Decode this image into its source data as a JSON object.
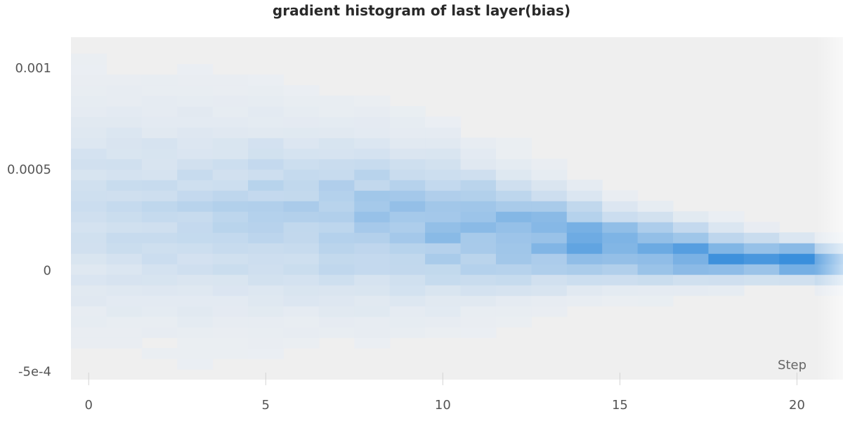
{
  "chart_data": {
    "type": "heatmap",
    "title": "gradient histogram of last layer(bias)",
    "xlabel": "Step",
    "ylabel": "",
    "xlim": [
      -0.5,
      21.3
    ],
    "ylim": [
      -0.000543,
      0.00115
    ],
    "x_ticks": [
      0,
      5,
      10,
      15,
      20
    ],
    "x_tick_labels": [
      "0",
      "5",
      "10",
      "15",
      "20"
    ],
    "y_ticks": [
      -0.0005,
      0,
      0.0005,
      0.001
    ],
    "y_tick_labels": [
      "-5e-4",
      "0",
      "0.0005",
      "0.001"
    ],
    "bin_height": 5.2e-05,
    "colors": {
      "low": "#eef0f3",
      "high": "#3a8fdc",
      "background": "#efefef"
    },
    "steps": [
      {
        "step": 0,
        "center": 0.0003,
        "spread": 0.00028
      },
      {
        "step": 1,
        "center": 0.00029,
        "spread": 0.00028
      },
      {
        "step": 2,
        "center": 0.00029,
        "spread": 0.00027
      },
      {
        "step": 3,
        "center": 0.00028,
        "spread": 0.00027
      },
      {
        "step": 4,
        "center": 0.00028,
        "spread": 0.00026
      },
      {
        "step": 5,
        "center": 0.00028,
        "spread": 0.00025
      },
      {
        "step": 6,
        "center": 0.00027,
        "spread": 0.00024
      },
      {
        "step": 7,
        "center": 0.00026,
        "spread": 0.00023
      },
      {
        "step": 8,
        "center": 0.00025,
        "spread": 0.00022
      },
      {
        "step": 9,
        "center": 0.00024,
        "spread": 0.00021
      },
      {
        "step": 10,
        "center": 0.00022,
        "spread": 0.00019
      },
      {
        "step": 11,
        "center": 0.0002,
        "spread": 0.00017
      },
      {
        "step": 12,
        "center": 0.00018,
        "spread": 0.00015
      },
      {
        "step": 13,
        "center": 0.00016,
        "spread": 0.00013
      },
      {
        "step": 14,
        "center": 0.00014,
        "spread": 0.00011
      },
      {
        "step": 15,
        "center": 0.00012,
        "spread": 9.5e-05
      },
      {
        "step": 16,
        "center": 0.0001,
        "spread": 8.5e-05
      },
      {
        "step": 17,
        "center": 8e-05,
        "spread": 7.5e-05
      },
      {
        "step": 18,
        "center": 7e-05,
        "spread": 6.5e-05
      },
      {
        "step": 19,
        "center": 6e-05,
        "spread": 5.5e-05
      },
      {
        "step": 20,
        "center": 5e-05,
        "spread": 5e-05
      },
      {
        "step": 21,
        "center": 3e-05,
        "spread": 4.5e-05
      }
    ]
  }
}
